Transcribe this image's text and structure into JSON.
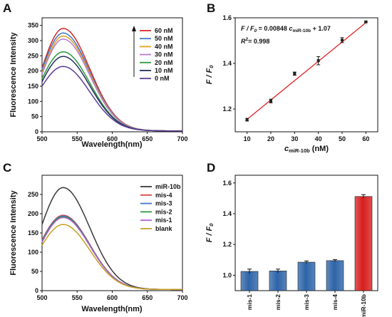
{
  "panels": {
    "A": "A",
    "B": "B",
    "C": "C",
    "D": "D"
  },
  "colors": {
    "regression_line": "#e02020",
    "bar_blue": "#2e64a8",
    "bar_red": "#d81e1e"
  },
  "chart_data": [
    {
      "id": "A",
      "type": "line",
      "xlabel": "Wavelength(nm)",
      "ylabel": "Fluorescence Intensity",
      "xlim": [
        500,
        700
      ],
      "ylim": [
        0,
        375
      ],
      "xticks": [
        "500",
        "550",
        "600",
        "650",
        "700"
      ],
      "yticks": [
        "0",
        "50",
        "100",
        "150",
        "200",
        "250",
        "300",
        "350"
      ],
      "grid": false,
      "legend_position": "top-right",
      "arrow": "upward",
      "series": [
        {
          "name": "60 nM",
          "color": "#d22828",
          "start": 210,
          "peak": 340,
          "x_peak": 530,
          "end": 3
        },
        {
          "name": "50 nM",
          "color": "#3c78c8",
          "start": 205,
          "peak": 325,
          "x_peak": 530,
          "end": 3
        },
        {
          "name": "40 nM",
          "color": "#e0a020",
          "start": 195,
          "peak": 315,
          "x_peak": 530,
          "end": 3
        },
        {
          "name": "30 nM",
          "color": "#b87ad2",
          "start": 190,
          "peak": 305,
          "x_peak": 530,
          "end": 3
        },
        {
          "name": "20 nM",
          "color": "#2c9a3c",
          "start": 175,
          "peak": 263,
          "x_peak": 530,
          "end": 3
        },
        {
          "name": "10 nM",
          "color": "#23305a",
          "start": 165,
          "peak": 248,
          "x_peak": 530,
          "end": 3
        },
        {
          "name": "0 nM",
          "color": "#5a3c96",
          "start": 150,
          "peak": 215,
          "x_peak": 530,
          "end": 3
        }
      ]
    },
    {
      "id": "B",
      "type": "scatter",
      "xlabel_main": "c",
      "xlabel_sub": "miR-10b",
      "xlabel_unit": " (nM)",
      "ylabel": "F / F",
      "ylabel_sub": "0",
      "xlim": [
        5,
        65
      ],
      "ylim": [
        1.1,
        1.6
      ],
      "xticks": [
        "10",
        "20",
        "30",
        "40",
        "50",
        "60"
      ],
      "yticks": [
        "1.2",
        "1.4",
        "1.6"
      ],
      "grid": false,
      "x": [
        10,
        20,
        30,
        40,
        50,
        60
      ],
      "y": [
        1.153,
        1.235,
        1.355,
        1.412,
        1.502,
        1.582
      ],
      "err": [
        0.006,
        0.008,
        0.007,
        0.018,
        0.011,
        0.003
      ],
      "fit": {
        "slope": 0.00848,
        "intercept": 1.07
      },
      "equation": {
        "lhs": "F / F",
        "lhs_sub": "0",
        "mid": " = 0.00848 ",
        "c": "c",
        "c_sub": "miR-10b",
        "rhs": " + 1.07"
      },
      "r2": {
        "r": "R",
        "sup": "2",
        "value": "= 0.998"
      }
    },
    {
      "id": "C",
      "type": "line",
      "xlabel": "Wavelength(nm)",
      "ylabel": "Fluorescence Intensity",
      "xlim": [
        500,
        700
      ],
      "ylim": [
        0,
        300
      ],
      "xticks": [
        "500",
        "550",
        "600",
        "650",
        "700"
      ],
      "yticks": [
        "0",
        "50",
        "100",
        "150",
        "200",
        "250"
      ],
      "grid": false,
      "legend_position": "top-right",
      "series": [
        {
          "name": "miR-10b",
          "color": "#3a3a3a",
          "start": 172,
          "peak": 268,
          "x_peak": 530,
          "end": 3
        },
        {
          "name": "mis-4",
          "color": "#e04040",
          "start": 132,
          "peak": 196,
          "x_peak": 530,
          "end": 3
        },
        {
          "name": "mis-3",
          "color": "#3c78c8",
          "start": 130,
          "peak": 194,
          "x_peak": 530,
          "end": 3
        },
        {
          "name": "mis-2",
          "color": "#2c9a3c",
          "start": 128,
          "peak": 192,
          "x_peak": 530,
          "end": 3
        },
        {
          "name": "mis-1",
          "color": "#b060d0",
          "start": 126,
          "peak": 190,
          "x_peak": 530,
          "end": 3
        },
        {
          "name": "blank",
          "color": "#c8a020",
          "start": 118,
          "peak": 172,
          "x_peak": 530,
          "end": 3
        }
      ]
    },
    {
      "id": "D",
      "type": "bar",
      "ylabel": "F / F",
      "ylabel_sub": "0",
      "categories": [
        "mis-1",
        "mis-2",
        "mis-3",
        "mis-4",
        "miR-10b"
      ],
      "values": [
        1.025,
        1.028,
        1.085,
        1.095,
        1.512
      ],
      "err": [
        0.015,
        0.012,
        0.008,
        0.007,
        0.012
      ],
      "bar_colors": [
        "#2e64a8",
        "#2e64a8",
        "#2e64a8",
        "#2e64a8",
        "#d81e1e"
      ],
      "ylim": [
        0.9,
        1.65
      ],
      "yticks": [
        "1.0",
        "1.2",
        "1.4",
        "1.6"
      ],
      "grid": false
    }
  ]
}
